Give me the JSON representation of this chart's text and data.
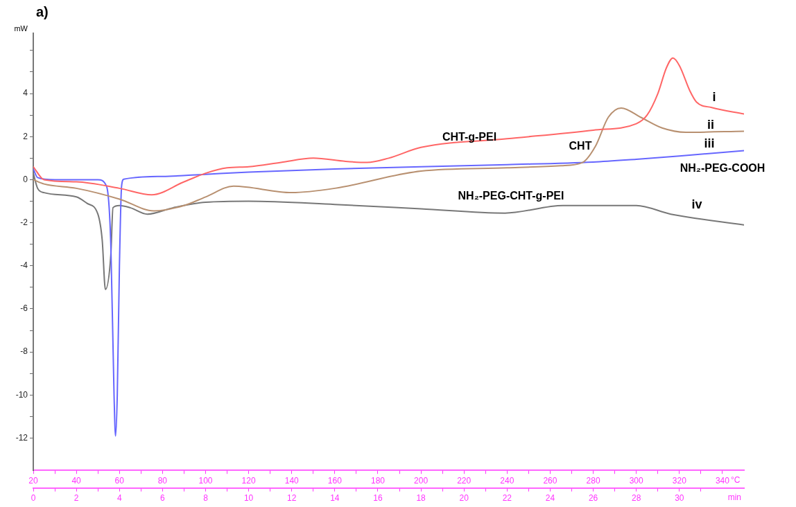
{
  "chart_data": {
    "type": "line",
    "title": "a)",
    "ylabel": "mW",
    "xlabel": "°C",
    "x2label": "min",
    "xlim": [
      20,
      350
    ],
    "xticks": [
      20,
      {
        "value": 30,
        "label": null
      },
      40,
      {
        "value": 50,
        "label": null
      },
      60,
      {
        "value": 70,
        "label": null
      },
      80,
      {
        "value": 90,
        "label": null
      },
      100,
      {
        "value": 110,
        "label": null
      },
      120,
      {
        "value": 130,
        "label": null
      },
      140,
      {
        "value": 150,
        "label": null
      },
      160,
      {
        "value": 170,
        "label": null
      },
      180,
      {
        "value": 190,
        "label": null
      },
      200,
      {
        "value": 210,
        "label": null
      },
      220,
      {
        "value": 230,
        "label": null
      },
      240,
      {
        "value": 250,
        "label": null
      },
      260,
      {
        "value": 270,
        "label": null
      },
      280,
      {
        "value": 290,
        "label": null
      },
      300,
      {
        "value": 310,
        "label": null
      },
      320,
      {
        "value": 330,
        "label": null
      },
      340
    ],
    "x2lim": [
      0,
      33
    ],
    "x2ticks": [
      0,
      {
        "value": 1,
        "label": null
      },
      2,
      {
        "value": 3,
        "label": null
      },
      4,
      {
        "value": 5,
        "label": null
      },
      6,
      {
        "value": 7,
        "label": null
      },
      8,
      {
        "value": 9,
        "label": null
      },
      10,
      {
        "value": 11,
        "label": null
      },
      12,
      {
        "value": 13,
        "label": null
      },
      14,
      {
        "value": 15,
        "label": null
      },
      16,
      {
        "value": 17,
        "label": null
      },
      18,
      {
        "value": 19,
        "label": null
      },
      20,
      {
        "value": 21,
        "label": null
      },
      22,
      {
        "value": 23,
        "label": null
      },
      24,
      {
        "value": 25,
        "label": null
      },
      26,
      {
        "value": 27,
        "label": null
      },
      28,
      {
        "value": 29,
        "label": null
      },
      30,
      {
        "value": 31,
        "label": null
      }
    ],
    "ylim": [
      -13.5,
      6.8
    ],
    "yticks": [
      -12,
      {
        "value": -11,
        "label": null
      },
      -10,
      {
        "value": -9,
        "label": null
      },
      -8,
      {
        "value": -7,
        "label": null
      },
      -6,
      {
        "value": -5,
        "label": null
      },
      -4,
      {
        "value": -3,
        "label": null
      },
      -2,
      {
        "value": -1,
        "label": null
      },
      0,
      {
        "value": 1,
        "label": null
      },
      2,
      {
        "value": 3,
        "label": null
      },
      4,
      {
        "value": 5,
        "label": null
      },
      {
        "value": 6,
        "label": null
      }
    ],
    "grid": false,
    "legend": false,
    "marker": "none",
    "line_style": "solid",
    "series": [
      {
        "name": "i",
        "color": "#ff6666",
        "x": [
          20,
          25,
          40,
          60,
          75,
          90,
          100,
          110,
          120,
          135,
          150,
          165,
          175,
          185,
          200,
          240,
          280,
          300,
          305,
          310,
          314,
          317,
          320,
          325,
          328,
          335,
          350
        ],
        "values": [
          0.6,
          0,
          -0.1,
          -0.4,
          -0.7,
          -0.1,
          0.3,
          0.55,
          0.6,
          0.8,
          1.0,
          0.85,
          0.8,
          1.0,
          1.5,
          1.9,
          2.3,
          2.6,
          3.0,
          4.0,
          5.2,
          5.65,
          5.3,
          4.1,
          3.6,
          3.35,
          3.05
        ]
      },
      {
        "name": "ii",
        "color": "#b89070",
        "x": [
          20,
          25,
          40,
          60,
          76,
          90,
          100,
          113,
          140,
          160,
          200,
          240,
          265,
          275,
          281,
          287,
          293,
          302,
          312,
          323,
          350
        ],
        "values": [
          0,
          -0.2,
          -0.4,
          -0.9,
          -1.45,
          -1.2,
          -0.8,
          -0.3,
          -0.6,
          -0.4,
          0.4,
          0.55,
          0.65,
          0.8,
          1.55,
          2.9,
          3.33,
          2.9,
          2.4,
          2.2,
          2.25
        ]
      },
      {
        "name": "iii",
        "color": "#6666ff",
        "x": [
          20,
          22,
          30,
          50,
          54,
          56,
          57.5,
          58.2,
          59,
          60,
          61,
          62,
          80,
          100,
          120,
          160,
          200,
          240,
          280,
          300,
          320,
          350
        ],
        "values": [
          0.5,
          0.1,
          0,
          0,
          -0.3,
          -3,
          -10,
          -11.9,
          -10,
          -4,
          -0.3,
          0.02,
          0.15,
          0.25,
          0.35,
          0.5,
          0.6,
          0.7,
          0.82,
          0.95,
          1.1,
          1.35
        ]
      },
      {
        "name": "iv",
        "color": "#777777",
        "x": [
          20,
          22,
          25,
          40,
          45,
          50,
          52,
          53.5,
          56,
          57,
          60,
          65,
          73,
          85,
          100,
          120,
          160,
          200,
          239,
          266,
          300,
          316,
          350
        ],
        "values": [
          0.3,
          -0.4,
          -0.6,
          -0.8,
          -1.1,
          -1.6,
          -2.8,
          -5.1,
          -3.5,
          -1.3,
          -1.2,
          -1.3,
          -1.6,
          -1.3,
          -1.05,
          -1.0,
          -1.15,
          -1.35,
          -1.55,
          -1.2,
          -1.2,
          -1.6,
          -2.1
        ]
      }
    ],
    "annotations": [
      "CHT-g-PEI",
      "CHT",
      "NH₂-PEG-COOH",
      "NH₂-PEG-CHT-g-PEI"
    ]
  }
}
